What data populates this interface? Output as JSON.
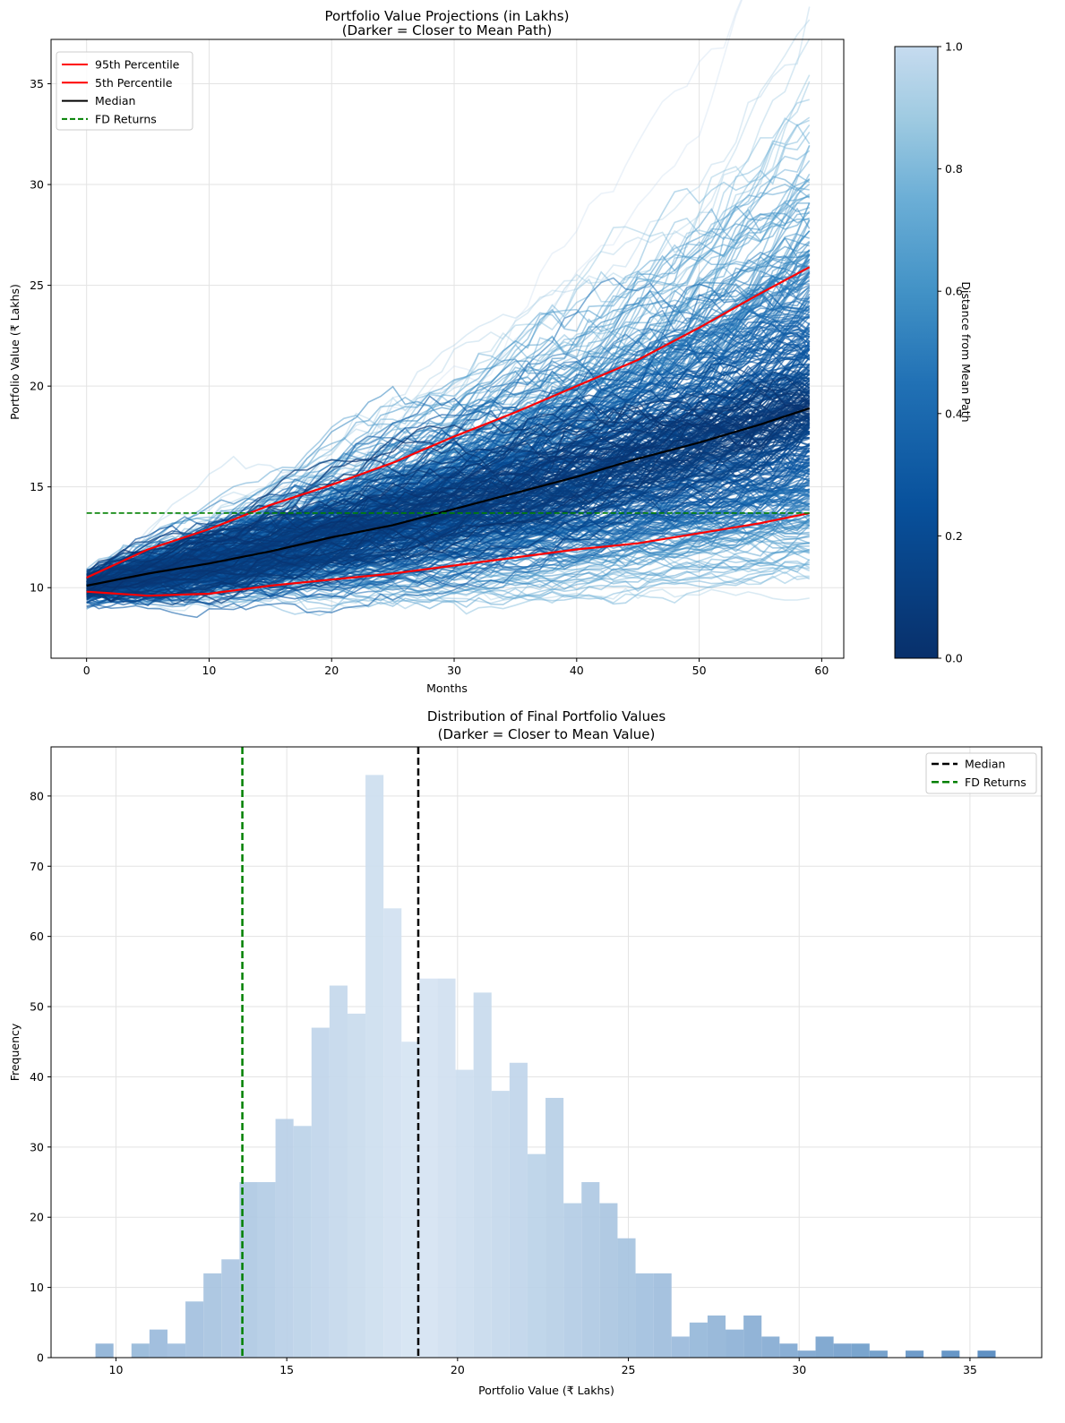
{
  "chart_data": [
    {
      "type": "line",
      "title": "Portfolio Value Projections (in Lakhs)",
      "subtitle": "(Darker = Closer to Mean Path)",
      "xlabel": "Months",
      "ylabel": "Portfolio Value (₹ Lakhs)",
      "xlim": [
        -2.9,
        61.8
      ],
      "ylim": [
        6.5,
        37.2
      ],
      "xticks": [
        0,
        10,
        20,
        30,
        40,
        50,
        60
      ],
      "yticks": [
        10,
        15,
        20,
        25,
        30,
        35
      ],
      "grid": true,
      "legend_position": "top-left",
      "x": [
        0,
        5,
        10,
        15,
        20,
        25,
        30,
        35,
        40,
        45,
        50,
        55,
        59
      ],
      "series": [
        {
          "name": "95th Percentile",
          "color": "#ff0000",
          "style": "solid",
          "values": [
            10.5,
            11.9,
            12.9,
            14.1,
            15.1,
            16.2,
            17.5,
            18.7,
            20.0,
            21.3,
            22.9,
            24.6,
            25.9
          ]
        },
        {
          "name": "5th Percentile",
          "color": "#ff0000",
          "style": "solid",
          "values": [
            9.8,
            9.6,
            9.7,
            10.1,
            10.4,
            10.7,
            11.1,
            11.5,
            11.9,
            12.2,
            12.7,
            13.2,
            13.7
          ]
        },
        {
          "name": "Median",
          "color": "#000000",
          "style": "solid",
          "values": [
            10.1,
            10.7,
            11.2,
            11.8,
            12.5,
            13.1,
            13.9,
            14.7,
            15.5,
            16.4,
            17.2,
            18.1,
            18.9
          ]
        },
        {
          "name": "FD Returns",
          "color": "#008000",
          "style": "dashed",
          "values": [
            13.7,
            13.7,
            13.7,
            13.7,
            13.7,
            13.7,
            13.7,
            13.7,
            13.7,
            13.7,
            13.7,
            13.7,
            13.7
          ]
        }
      ],
      "simulated_paths": {
        "months": 60,
        "colormap": "Blues_r",
        "final_value_range": [
          9.4,
          35.8
        ]
      },
      "colorbar": {
        "label": "Distance from Mean Path",
        "range": [
          0.0,
          1.0
        ],
        "ticks": [
          "0.0",
          "0.2",
          "0.4",
          "0.6",
          "0.8",
          "1.0"
        ]
      }
    },
    {
      "type": "bar",
      "title": "Distribution of Final Portfolio Values",
      "subtitle": "(Darker = Closer to Mean Value)",
      "xlabel": "Portfolio Value (₹ Lakhs)",
      "ylabel": "Frequency",
      "xlim": [
        8.1,
        37.1
      ],
      "ylim": [
        0,
        87
      ],
      "xticks": [
        10,
        15,
        20,
        25,
        30,
        35
      ],
      "yticks": [
        0,
        10,
        20,
        30,
        40,
        50,
        60,
        70,
        80
      ],
      "grid": true,
      "legend_position": "top-right",
      "bin_start": 9.4,
      "bin_width": 0.527,
      "counts": [
        2,
        0,
        2,
        4,
        2,
        8,
        12,
        14,
        25,
        25,
        34,
        33,
        47,
        53,
        49,
        83,
        64,
        45,
        54,
        54,
        41,
        52,
        38,
        42,
        29,
        37,
        22,
        25,
        22,
        17,
        12,
        12,
        3,
        5,
        6,
        4,
        6,
        3,
        2,
        1,
        3,
        2,
        2,
        1,
        0,
        1,
        0,
        1,
        0,
        1
      ],
      "vlines": [
        {
          "name": "Median",
          "x": 18.85,
          "color": "#000000",
          "style": "dashed"
        },
        {
          "name": "FD Returns",
          "x": 13.7,
          "color": "#008000",
          "style": "dashed"
        }
      ]
    }
  ]
}
